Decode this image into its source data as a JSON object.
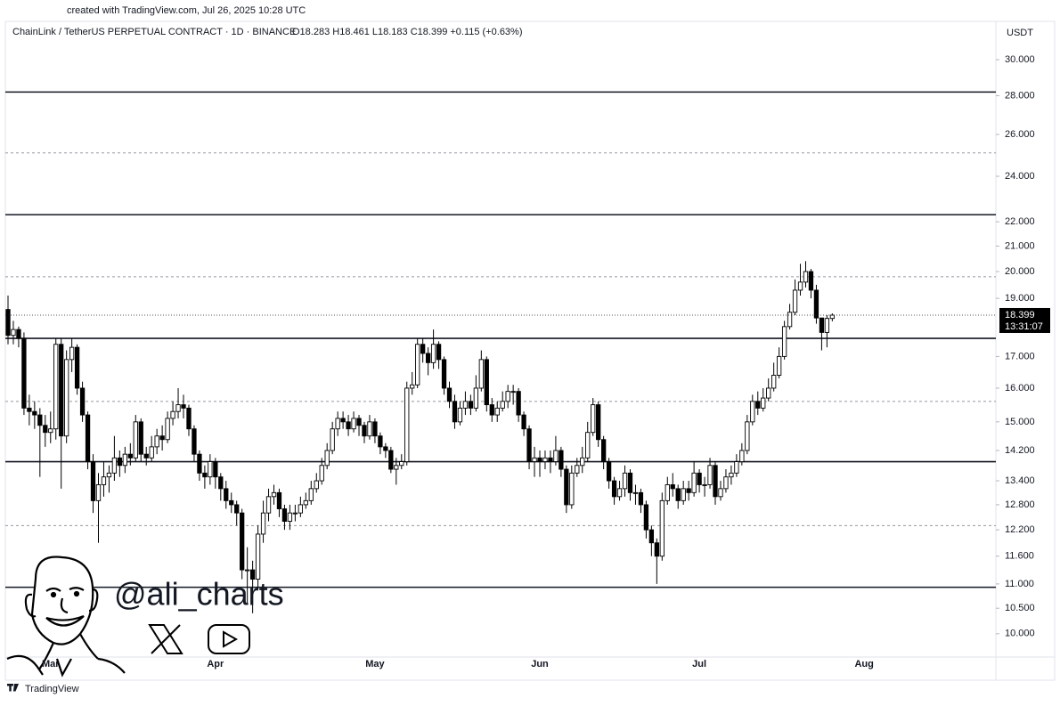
{
  "header": {
    "created": "created with TradingView.com, Jul 26, 2025 10:28 UTC"
  },
  "chart_data": {
    "type": "candlestick",
    "title": "ChainLink / TetherUS PERPETUAL CONTRACT · 1D · BINANCE",
    "ohlc_legend": "O18.283  H18.461  L18.183  C18.399  +0.115 (+0.63%)",
    "currency": "USDT",
    "countdown": "13:31:07",
    "watermark": "@ali_charts",
    "log_scale": true,
    "up_color": "#ffffff",
    "down_color": "#000000",
    "ylim": [
      9.37,
      30.99
    ],
    "yticks": [
      {
        "value": 10,
        "label": "10.000"
      },
      {
        "value": 10.5,
        "label": "10.500"
      },
      {
        "value": 11,
        "label": "11.000"
      },
      {
        "value": 11.6,
        "label": "11.600"
      },
      {
        "value": 12.2,
        "label": "12.200"
      },
      {
        "value": 12.8,
        "label": "12.800"
      },
      {
        "value": 13.4,
        "label": "13.400"
      },
      {
        "value": 14.2,
        "label": "14.200"
      },
      {
        "value": 15,
        "label": "15.000"
      },
      {
        "value": 16,
        "label": "16.000"
      },
      {
        "value": 17,
        "label": "17.000"
      },
      {
        "value": 19,
        "label": "19.000"
      },
      {
        "value": 20,
        "label": "20.000"
      },
      {
        "value": 21,
        "label": "21.000"
      },
      {
        "value": 22,
        "label": "22.000"
      },
      {
        "value": 24,
        "label": "24.000"
      },
      {
        "value": 26,
        "label": "26.000"
      },
      {
        "value": 28,
        "label": "28.000"
      },
      {
        "value": 30,
        "label": "30.000"
      }
    ],
    "levels": [
      {
        "value": 28.2,
        "style": "solid"
      },
      {
        "value": 25.1,
        "style": "dashed"
      },
      {
        "value": 22.3,
        "style": "solid"
      },
      {
        "value": 19.8,
        "style": "dashed"
      },
      {
        "value": 17.6,
        "style": "solid"
      },
      {
        "value": 15.6,
        "style": "dashed"
      },
      {
        "value": 13.9,
        "style": "solid"
      },
      {
        "value": 12.3,
        "style": "dashed"
      },
      {
        "value": 10.93,
        "style": "solid"
      }
    ],
    "categories": [
      null,
      null,
      null,
      null,
      null,
      null,
      null,
      null,
      "Mar",
      null,
      null,
      null,
      null,
      null,
      null,
      null,
      null,
      null,
      null,
      null,
      null,
      null,
      null,
      null,
      null,
      null,
      null,
      null,
      null,
      null,
      null,
      null,
      null,
      null,
      null,
      null,
      null,
      null,
      null,
      "Apr",
      null,
      null,
      null,
      null,
      null,
      null,
      null,
      null,
      null,
      null,
      null,
      null,
      null,
      null,
      null,
      null,
      null,
      null,
      null,
      null,
      null,
      null,
      null,
      null,
      null,
      null,
      null,
      null,
      null,
      "May",
      null,
      null,
      null,
      null,
      null,
      null,
      null,
      null,
      null,
      null,
      null,
      null,
      null,
      null,
      null,
      null,
      null,
      null,
      null,
      null,
      null,
      null,
      null,
      null,
      null,
      null,
      null,
      null,
      null,
      null,
      "Jun",
      null,
      null,
      null,
      null,
      null,
      null,
      null,
      null,
      null,
      null,
      null,
      null,
      null,
      null,
      null,
      null,
      null,
      null,
      null,
      null,
      null,
      null,
      null,
      null,
      null,
      null,
      null,
      null,
      null,
      "Jul",
      null,
      null,
      null,
      null,
      null,
      null,
      null,
      null,
      null,
      null,
      null,
      null,
      null,
      null,
      null,
      null,
      null,
      null,
      null,
      null,
      null,
      null,
      null,
      null,
      null,
      null,
      null,
      null,
      null,
      null,
      "Aug"
    ],
    "open": [
      18.6,
      17.7,
      17.9,
      17.6,
      15.4,
      15.3,
      15.2,
      14.9,
      14.7,
      14.8,
      17.4,
      14.6,
      16.9,
      17.3,
      16.0,
      15.2,
      13.9,
      12.9,
      13.3,
      13.5,
      13.6,
      14.0,
      13.8,
      14.1,
      14.0,
      15.0,
      14.1,
      14.0,
      14.3,
      14.6,
      14.5,
      15.1,
      15.3,
      15.5,
      15.4,
      14.8,
      14.1,
      13.6,
      13.5,
      13.9,
      13.5,
      13.2,
      12.9,
      12.8,
      12.6,
      11.3,
      11.3,
      11.1,
      12.1,
      12.6,
      13.0,
      13.1,
      12.7,
      12.4,
      12.6,
      12.6,
      12.8,
      12.9,
      13.2,
      13.4,
      13.8,
      14.2,
      14.8,
      15.1,
      15.0,
      14.8,
      15.1,
      14.9,
      14.6,
      15.0,
      14.6,
      14.3,
      14.2,
      13.7,
      13.8,
      13.9,
      16.0,
      16.1,
      17.4,
      17.1,
      16.8,
      17.4,
      16.9,
      16.0,
      15.6,
      15.0,
      15.4,
      15.6,
      15.4,
      16.0,
      16.9,
      15.5,
      15.2,
      15.4,
      15.6,
      15.9,
      15.9,
      15.2,
      14.8,
      13.9,
      14.0,
      13.9,
      14.0,
      13.9,
      14.2,
      13.7,
      12.8,
      13.6,
      13.8,
      14.0,
      14.7,
      15.5,
      14.5,
      13.9,
      13.4,
      13.0,
      13.2,
      13.6,
      13.1,
      13.1,
      12.8,
      12.2,
      11.9,
      11.6,
      12.9,
      13.3,
      13.2,
      12.9,
      13.2,
      13.1,
      13.6,
      13.3,
      13.3,
      13.8,
      13.0,
      13.2,
      13.5,
      13.6,
      13.9,
      14.2,
      15.0,
      15.6,
      15.4,
      15.7,
      16.0,
      16.4,
      17.0,
      18.0,
      18.5,
      19.3,
      19.6,
      20.0,
      19.3,
      18.3,
      17.8,
      18.283,
      null,
      null,
      null,
      null,
      null,
      null
    ],
    "high": [
      19.1,
      18.2,
      18.0,
      17.8,
      15.8,
      15.6,
      15.4,
      15.2,
      15.3,
      17.6,
      17.6,
      17.2,
      17.6,
      17.4,
      16.2,
      15.3,
      14.1,
      13.6,
      13.9,
      13.8,
      14.6,
      14.2,
      14.3,
      14.4,
      15.2,
      15.1,
      14.3,
      14.6,
      14.8,
      14.9,
      15.3,
      15.6,
      16.0,
      15.8,
      15.5,
      14.9,
      14.2,
      13.8,
      14.1,
      14.0,
      13.6,
      13.4,
      13.1,
      12.9,
      12.7,
      11.8,
      11.5,
      12.3,
      12.9,
      13.2,
      13.3,
      13.2,
      12.8,
      12.8,
      12.8,
      13.0,
      13.1,
      13.4,
      13.6,
      14.0,
      14.4,
      15.0,
      15.3,
      15.3,
      15.2,
      15.3,
      15.2,
      15.0,
      15.2,
      15.1,
      14.7,
      14.4,
      14.3,
      14.0,
      14.1,
      16.2,
      16.5,
      17.6,
      17.6,
      17.3,
      17.9,
      17.5,
      17.0,
      16.2,
      15.8,
      15.6,
      15.9,
      15.8,
      16.4,
      17.2,
      17.0,
      15.7,
      15.6,
      15.9,
      16.1,
      16.1,
      16.0,
      15.3,
      14.9,
      14.3,
      14.2,
      14.2,
      14.2,
      14.6,
      14.3,
      13.8,
      13.8,
      14.0,
      14.3,
      15.0,
      15.7,
      15.6,
      14.6,
      14.0,
      13.5,
      13.4,
      13.8,
      13.7,
      13.3,
      13.2,
      12.9,
      12.3,
      12.0,
      13.1,
      13.5,
      13.6,
      13.3,
      13.4,
      13.4,
      13.9,
      13.7,
      13.5,
      14.0,
      13.9,
      13.4,
      13.7,
      13.8,
      14.1,
      14.4,
      15.2,
      15.8,
      15.9,
      16.0,
      16.3,
      16.8,
      17.3,
      18.2,
      18.8,
      19.7,
      20.3,
      20.4,
      20.1,
      19.5,
      18.3,
      18.4,
      18.461,
      null,
      null,
      null,
      null,
      null,
      null
    ],
    "low": [
      17.4,
      17.4,
      17.3,
      15.2,
      14.9,
      14.8,
      13.5,
      14.3,
      14.4,
      14.5,
      13.2,
      14.4,
      16.5,
      15.8,
      15.0,
      13.7,
      12.6,
      11.9,
      13.0,
      13.1,
      13.4,
      13.5,
      13.6,
      13.8,
      13.9,
      13.9,
      13.8,
      13.9,
      14.1,
      14.2,
      14.4,
      14.9,
      15.1,
      15.1,
      14.6,
      13.9,
      13.4,
      13.2,
      13.3,
      13.2,
      12.9,
      12.7,
      12.6,
      12.3,
      11.1,
      10.6,
      10.4,
      10.9,
      11.9,
      12.4,
      12.8,
      12.5,
      12.2,
      12.2,
      12.4,
      12.5,
      12.7,
      12.8,
      13.1,
      13.3,
      13.7,
      14.1,
      14.6,
      14.8,
      14.6,
      14.7,
      14.6,
      14.4,
      14.5,
      14.4,
      14.1,
      14.0,
      13.6,
      13.3,
      13.7,
      13.8,
      15.8,
      16.0,
      16.8,
      16.4,
      16.6,
      16.6,
      15.8,
      15.4,
      14.8,
      14.9,
      15.2,
      15.2,
      15.3,
      15.9,
      15.3,
      15.0,
      15.0,
      15.3,
      15.4,
      15.5,
      15.0,
      14.6,
      13.7,
      13.5,
      13.5,
      13.7,
      13.6,
      13.8,
      13.5,
      12.6,
      12.7,
      13.5,
      13.6,
      13.9,
      14.6,
      14.3,
      13.7,
      13.2,
      12.8,
      12.9,
      13.0,
      12.9,
      12.8,
      12.6,
      12.0,
      11.6,
      11.0,
      11.5,
      12.8,
      13.0,
      12.7,
      12.8,
      12.9,
      13.0,
      13.1,
      13.0,
      13.2,
      12.8,
      12.9,
      13.1,
      13.3,
      13.5,
      13.8,
      14.1,
      14.9,
      15.2,
      15.3,
      15.6,
      15.9,
      16.3,
      16.9,
      17.9,
      18.4,
      19.1,
      19.4,
      19.0,
      18.1,
      17.2,
      17.3,
      18.183,
      null,
      null,
      null,
      null,
      null,
      null
    ],
    "close": [
      17.7,
      17.9,
      17.6,
      15.4,
      15.3,
      15.2,
      14.9,
      14.7,
      14.8,
      17.4,
      14.6,
      16.9,
      17.3,
      16.0,
      15.2,
      13.9,
      12.9,
      13.3,
      13.5,
      13.6,
      14.0,
      13.8,
      14.1,
      14.0,
      15.0,
      14.1,
      14.0,
      14.3,
      14.6,
      14.5,
      15.1,
      15.3,
      15.5,
      15.4,
      14.8,
      14.1,
      13.6,
      13.5,
      13.9,
      13.5,
      13.2,
      12.9,
      12.8,
      12.6,
      11.3,
      11.3,
      11.1,
      12.1,
      12.6,
      13.0,
      13.1,
      12.7,
      12.4,
      12.6,
      12.6,
      12.8,
      12.9,
      13.2,
      13.4,
      13.8,
      14.2,
      14.8,
      15.1,
      15.0,
      14.8,
      15.1,
      14.9,
      14.6,
      15.0,
      14.6,
      14.3,
      14.2,
      13.7,
      13.8,
      13.9,
      16.0,
      16.1,
      17.4,
      17.1,
      16.8,
      17.4,
      16.9,
      16.0,
      15.6,
      15.0,
      15.4,
      15.6,
      15.4,
      16.0,
      16.9,
      15.5,
      15.2,
      15.4,
      15.6,
      15.9,
      15.9,
      15.2,
      14.8,
      13.9,
      14.0,
      13.9,
      14.0,
      13.9,
      14.2,
      13.7,
      12.8,
      13.6,
      13.8,
      14.0,
      14.7,
      15.5,
      14.5,
      13.9,
      13.4,
      13.0,
      13.2,
      13.6,
      13.1,
      13.1,
      12.8,
      12.2,
      11.9,
      11.6,
      12.9,
      13.3,
      13.2,
      12.9,
      13.2,
      13.1,
      13.6,
      13.3,
      13.3,
      13.8,
      13.0,
      13.2,
      13.5,
      13.6,
      13.9,
      14.2,
      15.0,
      15.6,
      15.4,
      15.7,
      16.0,
      16.4,
      17.0,
      18.0,
      18.5,
      19.3,
      19.6,
      20.0,
      19.3,
      18.3,
      17.8,
      18.283,
      18.399,
      null,
      null,
      null,
      null,
      null,
      null
    ]
  },
  "footer": {
    "brand": "TradingView"
  }
}
